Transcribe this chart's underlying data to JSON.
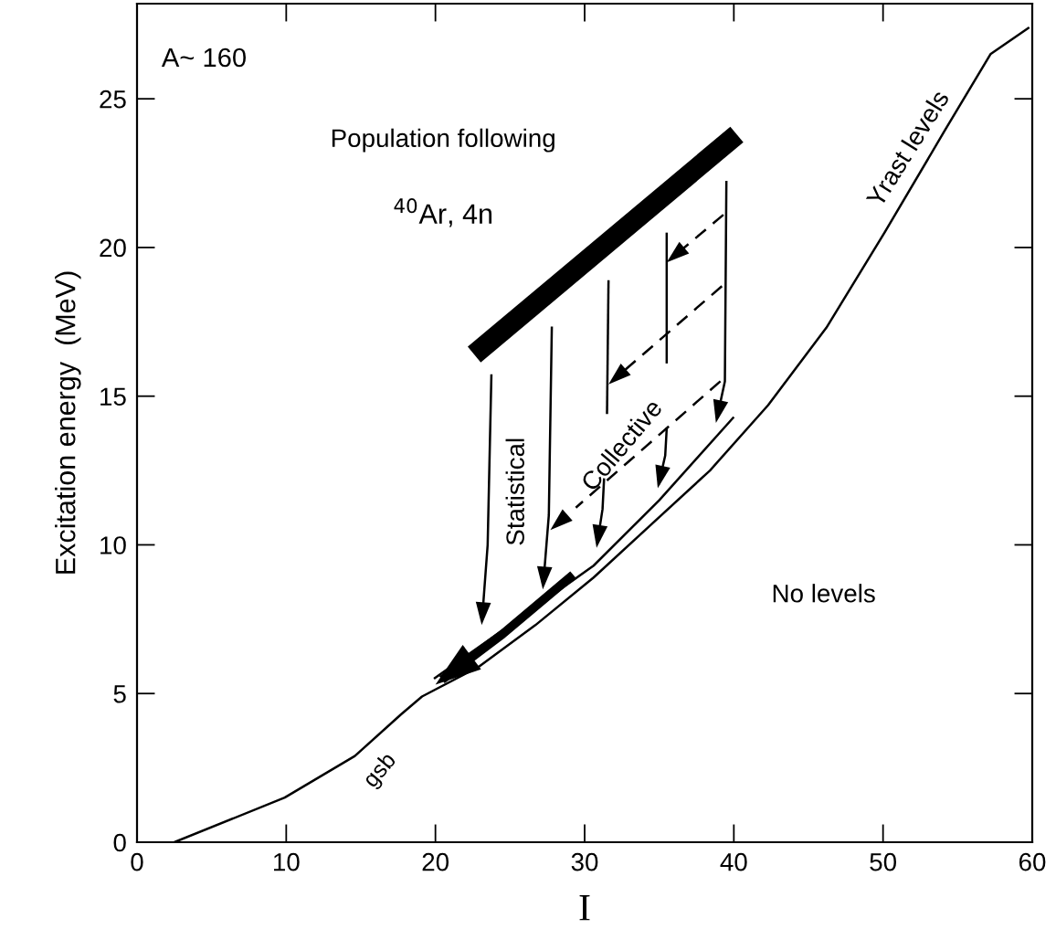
{
  "chart_data": {
    "type": "line",
    "xlabel": "I",
    "ylabel": "Excitation energy  (MeV)",
    "xlim": [
      0,
      60
    ],
    "ylim": [
      0,
      28.2
    ],
    "xticks": [
      0,
      10,
      20,
      30,
      40,
      50,
      60
    ],
    "yticks": [
      0,
      5,
      10,
      15,
      20,
      25
    ],
    "grid": false,
    "legend": false,
    "series": [
      {
        "color": "#000000",
        "line_style": "solid",
        "x": [
          2.5,
          9.9,
          14.6,
          17.7,
          19.1,
          22.9,
          26.7,
          30.6,
          34.5,
          38.4,
          42.3,
          46.2,
          50.1,
          54.1,
          57.2,
          59.8
        ],
        "values": [
          0,
          1.5,
          2.9,
          4.3,
          4.9,
          5.9,
          7.3,
          8.9,
          10.7,
          12.5,
          14.7,
          17.3,
          20.5,
          23.9,
          26.5,
          27.4
        ]
      },
      {
        "color": "#000000",
        "line_style": "solid",
        "x": [
          19.9,
          25,
          30.6,
          35,
          40
        ],
        "values": [
          5.5,
          7.3,
          9.3,
          11.5,
          14.3
        ]
      },
      {
        "color": "#000000",
        "line_style": "solid",
        "x": [
          22.6,
          40.2
        ],
        "values": [
          16.4,
          23.8
        ]
      },
      {
        "color": "#000000",
        "line_style": "solid",
        "x": [
          31.6,
          31.5
        ],
        "values": [
          18.9,
          14.4
        ]
      },
      {
        "color": "#000000",
        "line_style": "solid",
        "x": [
          35.5,
          35.5
        ],
        "values": [
          20.5,
          16.1
        ]
      }
    ],
    "annotations": [
      "A~ 160",
      "Population following",
      "$^{40}$Ar, 4n",
      "Statistical",
      "Collective",
      "No levels",
      "Yrast levels",
      "gsb"
    ]
  }
}
